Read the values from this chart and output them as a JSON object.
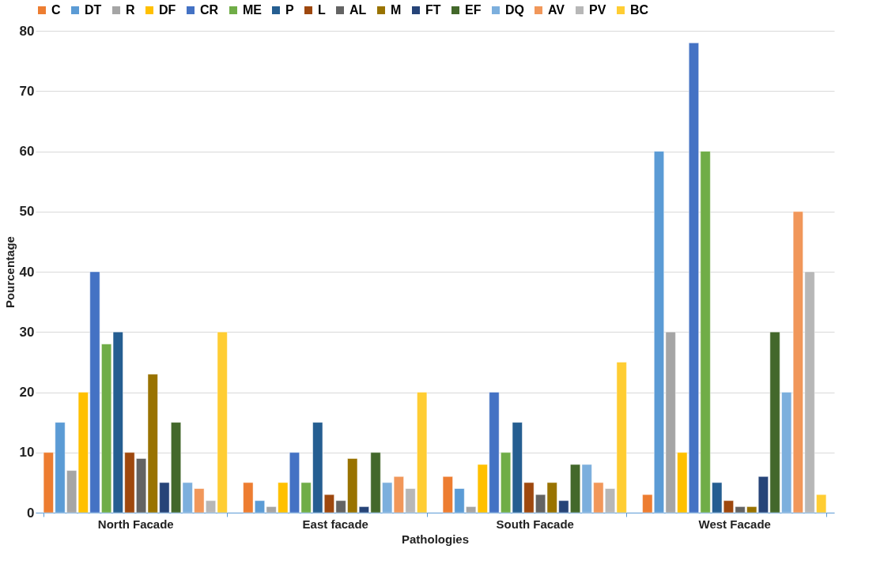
{
  "chart_data": {
    "type": "bar",
    "xlabel": "Pathologies",
    "ylabel": "Pourcentage",
    "categories": [
      "North Facade",
      "East facade",
      "South Facade",
      "West Facade"
    ],
    "ylim": [
      0,
      80
    ],
    "yticks": [
      0,
      10,
      20,
      30,
      40,
      50,
      60,
      70,
      80
    ],
    "grid": "y",
    "legend": "top",
    "series": [
      {
        "name": "C",
        "color": "#ed7d31",
        "values": [
          10,
          5,
          6,
          3
        ]
      },
      {
        "name": "DT",
        "color": "#5b9bd5",
        "values": [
          15,
          2,
          4,
          60
        ]
      },
      {
        "name": "R",
        "color": "#a5a5a5",
        "values": [
          7,
          1,
          1,
          30
        ]
      },
      {
        "name": "DF",
        "color": "#ffc000",
        "values": [
          20,
          5,
          8,
          10
        ]
      },
      {
        "name": "CR",
        "color": "#4472c4",
        "values": [
          40,
          10,
          20,
          78
        ]
      },
      {
        "name": "ME",
        "color": "#70ad47",
        "values": [
          28,
          5,
          10,
          60
        ]
      },
      {
        "name": "P",
        "color": "#255e91",
        "values": [
          30,
          15,
          15,
          5
        ]
      },
      {
        "name": "L",
        "color": "#9e480e",
        "values": [
          10,
          3,
          5,
          2
        ]
      },
      {
        "name": "AL",
        "color": "#636363",
        "values": [
          9,
          2,
          3,
          1
        ]
      },
      {
        "name": "M",
        "color": "#997300",
        "values": [
          23,
          9,
          5,
          1
        ]
      },
      {
        "name": "FT",
        "color": "#264478",
        "values": [
          5,
          1,
          2,
          6
        ]
      },
      {
        "name": "EF",
        "color": "#43682b",
        "values": [
          15,
          10,
          8,
          30
        ]
      },
      {
        "name": "DQ",
        "color": "#7cafdd",
        "values": [
          5,
          5,
          8,
          20
        ]
      },
      {
        "name": "AV",
        "color": "#f1975a",
        "values": [
          4,
          6,
          5,
          50
        ]
      },
      {
        "name": "PV",
        "color": "#b7b7b7",
        "values": [
          2,
          4,
          4,
          40
        ]
      },
      {
        "name": "BC",
        "color": "#ffcd33",
        "values": [
          30,
          20,
          25,
          3
        ]
      }
    ]
  }
}
